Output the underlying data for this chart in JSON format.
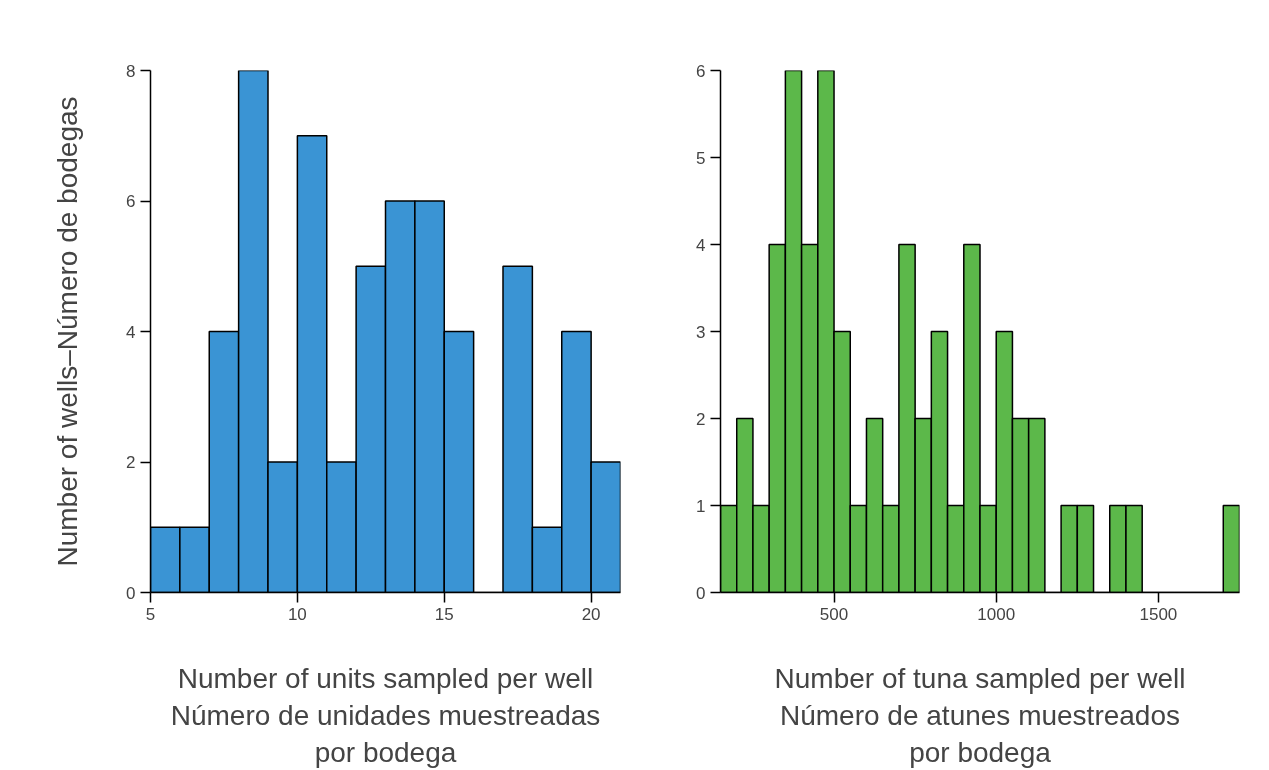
{
  "chart_data": [
    {
      "type": "histogram",
      "ylabel": "Number of wells–Número de bodegas",
      "xlabel": "Number of units sampled per well\nNúmero de unidades muestreadas\npor bodega",
      "bins": [
        5,
        6,
        7,
        8,
        9,
        10,
        11,
        12,
        13,
        14,
        15,
        16,
        17,
        18,
        19,
        20,
        21
      ],
      "values": [
        1,
        1,
        4,
        8,
        2,
        7,
        2,
        5,
        6,
        6,
        4,
        0,
        5,
        1,
        4,
        2
      ],
      "color": "#3a94d4",
      "xlim": [
        5,
        21
      ],
      "xticks": [
        5,
        10,
        15,
        20
      ],
      "ylim": [
        0,
        8
      ],
      "yticks": [
        0,
        2,
        4,
        6,
        8
      ],
      "grid": false
    },
    {
      "type": "histogram",
      "xlabel": "Number of tuna sampled per well\nNúmero de atunes muestreados\npor bodega",
      "bins": [
        150,
        200,
        250,
        300,
        350,
        400,
        450,
        500,
        550,
        600,
        650,
        700,
        750,
        800,
        850,
        900,
        950,
        1000,
        1050,
        1100,
        1150,
        1200,
        1250,
        1300,
        1350,
        1400,
        1450,
        1500,
        1550,
        1600,
        1650,
        1700,
        1750
      ],
      "values": [
        1,
        2,
        1,
        4,
        6,
        4,
        6,
        3,
        1,
        2,
        1,
        4,
        2,
        3,
        1,
        4,
        1,
        3,
        2,
        2,
        0,
        1,
        1,
        0,
        1,
        1,
        0,
        0,
        0,
        0,
        0,
        1
      ],
      "color": "#5cb84a",
      "xlim": [
        150,
        1750
      ],
      "xticks": [
        500,
        1000,
        1500
      ],
      "ylim": [
        0,
        6
      ],
      "yticks": [
        0,
        1,
        2,
        3,
        4,
        5,
        6
      ],
      "grid": false
    }
  ]
}
